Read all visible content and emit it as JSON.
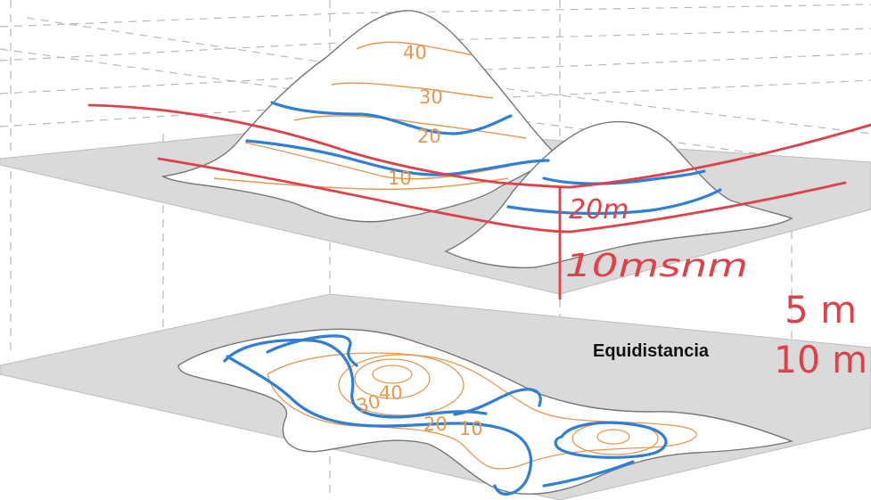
{
  "title": "",
  "contour_labels_3d": [
    "40",
    "30",
    "20",
    "10"
  ],
  "contour_labels_map": [
    "40",
    "30",
    "20",
    "10"
  ],
  "caption": "Equidistancia",
  "handwritten": {
    "label_20": "20m",
    "label_10": "10msnm",
    "value_5": "5 m",
    "value_10": "10 m"
  },
  "colors": {
    "relief_fill": "#ffffff",
    "plane_fill": "#dadada",
    "outline": "#777777",
    "contour": "#e8974f",
    "marker_blue": "#2f7fd4",
    "marker_red": "#e0404a",
    "grid_dash": "#b9b9b9"
  }
}
